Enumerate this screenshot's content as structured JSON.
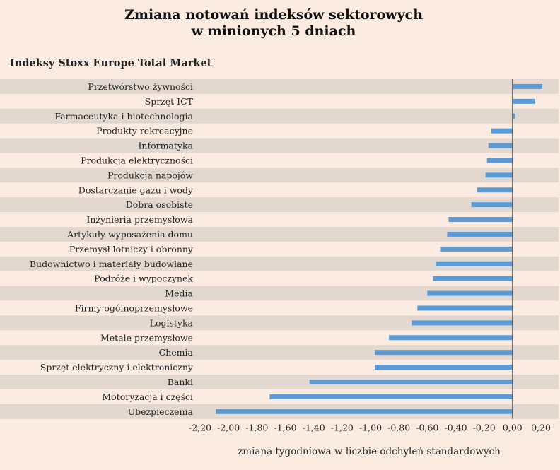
{
  "chart_data": {
    "type": "bar",
    "orientation": "horizontal",
    "title_line1": "Zmiana notowań indeksów sektorowych",
    "title_line2": "w minionych 5 dniach",
    "subtitle": "Indeksy Stoxx Europe Total Market",
    "xlabel": "zmiana tygodniowa w liczbie odchyleń standardowych",
    "xlim": [
      -2.2,
      0.2
    ],
    "xticks": [
      "-2,20",
      "-2,00",
      "-1,80",
      "-1,60",
      "-1,40",
      "-1,20",
      "-1,00",
      "-0,80",
      "-0,60",
      "-0,40",
      "-0,20",
      "0,00",
      "0,20"
    ],
    "bar_color": "#5b9bd5",
    "band_color": "#e3d8d0",
    "categories": [
      "Przetwórstwo żywności",
      "Sprzęt ICT",
      "Farmaceutyka i biotechnologia",
      "Produkty rekreacyjne",
      "Informatyka",
      "Produkcja elektryczności",
      "Produkcja napojów",
      "Dostarczanie gazu i wody",
      "Dobra osobiste",
      "Inżynieria przemysłowa",
      "Artykuły wyposażenia domu",
      "Przemysł lotniczy i obronny",
      "Budownictwo i materiały budowlane",
      "Podróże i wypoczynek",
      "Media",
      "Firmy ogólnoprzemysłowe",
      "Logistyka",
      "Metale przemysłowe",
      "Chemia",
      "Sprzęt elektryczny i elektroniczny",
      "Banki",
      "Motoryzacja i części",
      "Ubezpieczenia"
    ],
    "values": [
      0.21,
      0.16,
      0.02,
      -0.15,
      -0.17,
      -0.18,
      -0.19,
      -0.25,
      -0.29,
      -0.45,
      -0.46,
      -0.51,
      -0.54,
      -0.56,
      -0.6,
      -0.67,
      -0.71,
      -0.87,
      -0.97,
      -0.97,
      -1.43,
      -1.71,
      -2.09
    ]
  }
}
